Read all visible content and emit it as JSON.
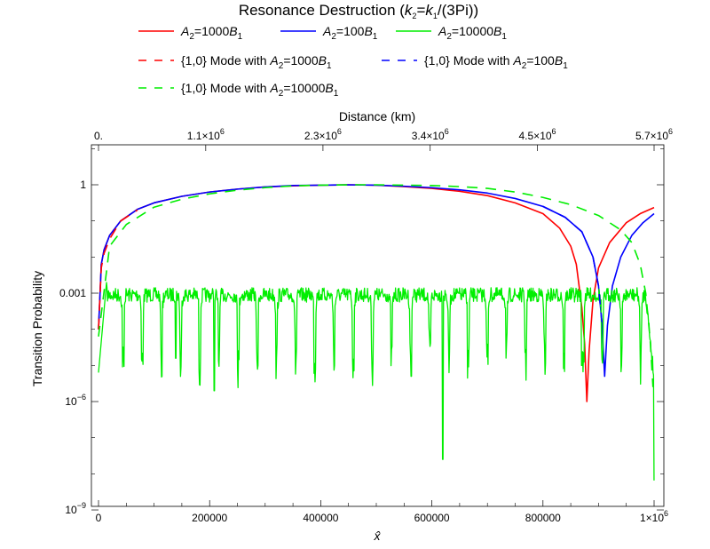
{
  "chart_data": {
    "type": "line",
    "title": "Resonance Destruction (k2=k1/(3Pi))",
    "title_parts": {
      "pre": "Resonance Destruction (",
      "k": "k",
      "s2": "2",
      "eq": "=",
      "s1": "1",
      "post": "/(3Pi))"
    },
    "xlabel": "x̂",
    "ylabel": "Transition Probability",
    "x2label": "Distance (km)",
    "xlim": [
      0,
      1000000
    ],
    "ylim_log10": [
      -9,
      1.3
    ],
    "yscale": "log",
    "grid": false,
    "legend_position": "top",
    "x_ticks": [
      {
        "value": 0,
        "label": "0"
      },
      {
        "value": 200000,
        "label": "200000"
      },
      {
        "value": 400000,
        "label": "400000"
      },
      {
        "value": 600000,
        "label": "600000"
      },
      {
        "value": 800000,
        "label": "800000"
      },
      {
        "value": 1000000,
        "label": "1×10",
        "exp": "6"
      }
    ],
    "x2_ticks": [
      {
        "value": 0,
        "label": "0.",
        "exp": ""
      },
      {
        "value": 193000,
        "label": "1.1×10",
        "exp": "6"
      },
      {
        "value": 404000,
        "label": "2.3×10",
        "exp": "6"
      },
      {
        "value": 597000,
        "label": "3.4×10",
        "exp": "6"
      },
      {
        "value": 790000,
        "label": "4.5×10",
        "exp": "6"
      },
      {
        "value": 1000000,
        "label": "5.7×10",
        "exp": "6"
      }
    ],
    "y_ticks": [
      {
        "log": 0,
        "label": "1",
        "exp": ""
      },
      {
        "log": -3,
        "label": "0.001",
        "exp": ""
      },
      {
        "log": -6,
        "label": "10",
        "exp": "−6"
      },
      {
        "log": -9,
        "label": "10",
        "exp": "−9"
      }
    ],
    "series": [
      {
        "name": "A2=1000B1",
        "legend": {
          "a": "A",
          "s2": "2",
          "mid": "=1000",
          "b": "B",
          "s1": "1"
        },
        "color": "#ff0000",
        "dash": false,
        "points": [
          [
            0,
            -4.0
          ],
          [
            5000,
            -2.2
          ],
          [
            10000,
            -1.8
          ],
          [
            20000,
            -1.4
          ],
          [
            40000,
            -1.0
          ],
          [
            70000,
            -0.68
          ],
          [
            100000,
            -0.5
          ],
          [
            150000,
            -0.32
          ],
          [
            200000,
            -0.2
          ],
          [
            250000,
            -0.12
          ],
          [
            300000,
            -0.06
          ],
          [
            350000,
            -0.03
          ],
          [
            400000,
            -0.01
          ],
          [
            450000,
            0.0
          ],
          [
            500000,
            -0.01
          ],
          [
            550000,
            -0.05
          ],
          [
            600000,
            -0.1
          ],
          [
            650000,
            -0.18
          ],
          [
            700000,
            -0.3
          ],
          [
            750000,
            -0.5
          ],
          [
            800000,
            -0.8
          ],
          [
            830000,
            -1.2
          ],
          [
            850000,
            -1.7
          ],
          [
            860000,
            -2.2
          ],
          [
            870000,
            -3.4
          ],
          [
            875000,
            -4.4
          ],
          [
            879000,
            -6.0
          ],
          [
            883000,
            -4.6
          ],
          [
            890000,
            -3.2
          ],
          [
            900000,
            -2.3
          ],
          [
            920000,
            -1.6
          ],
          [
            950000,
            -1.05
          ],
          [
            975000,
            -0.8
          ],
          [
            1000000,
            -0.63
          ]
        ]
      },
      {
        "name": "A2=100B1",
        "legend": {
          "a": "A",
          "s2": "2",
          "mid": "=100",
          "b": "B",
          "s1": "1"
        },
        "color": "#0000ff",
        "dash": false,
        "points": [
          [
            0,
            -4.0
          ],
          [
            5000,
            -2.2
          ],
          [
            10000,
            -1.8
          ],
          [
            20000,
            -1.4
          ],
          [
            40000,
            -1.0
          ],
          [
            70000,
            -0.68
          ],
          [
            100000,
            -0.5
          ],
          [
            150000,
            -0.32
          ],
          [
            200000,
            -0.2
          ],
          [
            250000,
            -0.12
          ],
          [
            300000,
            -0.06
          ],
          [
            350000,
            -0.02
          ],
          [
            400000,
            -0.01
          ],
          [
            450000,
            0.0
          ],
          [
            500000,
            -0.01
          ],
          [
            550000,
            -0.04
          ],
          [
            600000,
            -0.08
          ],
          [
            650000,
            -0.14
          ],
          [
            700000,
            -0.23
          ],
          [
            750000,
            -0.38
          ],
          [
            800000,
            -0.6
          ],
          [
            840000,
            -0.9
          ],
          [
            870000,
            -1.3
          ],
          [
            890000,
            -2.0
          ],
          [
            900000,
            -2.8
          ],
          [
            906000,
            -3.8
          ],
          [
            911000,
            -5.3
          ],
          [
            916000,
            -3.9
          ],
          [
            925000,
            -2.8
          ],
          [
            940000,
            -2.0
          ],
          [
            960000,
            -1.4
          ],
          [
            980000,
            -1.05
          ],
          [
            1000000,
            -0.8
          ]
        ]
      },
      {
        "name": "A2=10000B1",
        "legend": {
          "a": "A",
          "s2": "2",
          "mid": "=10000",
          "b": "B",
          "s1": "1"
        },
        "color": "#00ee00",
        "dash": false,
        "noise": true,
        "points": [
          [
            0,
            -5.0
          ],
          [
            5000,
            -3.2
          ],
          [
            15000,
            -2.7
          ],
          [
            1000000,
            -3.6
          ]
        ]
      },
      {
        "name": "{1,0} Mode with A2=1000B1",
        "legend": {
          "a": "{1,0} Mode with A",
          "s2": "2",
          "mid": "=1000",
          "b": "B",
          "s1": "1"
        },
        "color": "#ff0000",
        "dash": true,
        "points": [
          [
            0,
            -4.0
          ],
          [
            5000,
            -2.3
          ],
          [
            10000,
            -1.9
          ],
          [
            20000,
            -1.5
          ],
          [
            40000,
            -1.0
          ],
          [
            70000,
            -0.7
          ]
        ]
      },
      {
        "name": "{1,0} Mode with A2=100B1",
        "legend": {
          "a": "{1,0} Mode with A",
          "s2": "2",
          "mid": "=100",
          "b": "B",
          "s1": "1"
        },
        "color": "#0000ff",
        "dash": true,
        "points": [
          [
            800000,
            -0.6
          ],
          [
            840000,
            -0.9
          ],
          [
            870000,
            -1.3
          ],
          [
            890000,
            -2.0
          ],
          [
            900000,
            -2.8
          ],
          [
            906000,
            -3.8
          ]
        ]
      },
      {
        "name": "{1,0} Mode with A2=10000B1",
        "legend": {
          "a": "{1,0} Mode with A",
          "s2": "2",
          "mid": "=10000",
          "b": "B",
          "s1": "1"
        },
        "color": "#00ee00",
        "dash": true,
        "points": [
          [
            0,
            -4.2
          ],
          [
            20000,
            -1.7
          ],
          [
            50000,
            -1.1
          ],
          [
            100000,
            -0.62
          ],
          [
            150000,
            -0.4
          ],
          [
            200000,
            -0.25
          ],
          [
            250000,
            -0.15
          ],
          [
            300000,
            -0.08
          ],
          [
            350000,
            -0.03
          ],
          [
            400000,
            -0.01
          ],
          [
            450000,
            0.0
          ],
          [
            500000,
            0.0
          ],
          [
            550000,
            -0.01
          ],
          [
            600000,
            -0.02
          ],
          [
            650000,
            -0.05
          ],
          [
            700000,
            -0.1
          ],
          [
            750000,
            -0.2
          ],
          [
            800000,
            -0.35
          ],
          [
            850000,
            -0.55
          ],
          [
            900000,
            -0.85
          ],
          [
            940000,
            -1.25
          ],
          [
            960000,
            -1.6
          ],
          [
            975000,
            -2.2
          ],
          [
            985000,
            -3.0
          ],
          [
            993000,
            -4.3
          ],
          [
            998000,
            -5.6
          ]
        ]
      }
    ]
  }
}
